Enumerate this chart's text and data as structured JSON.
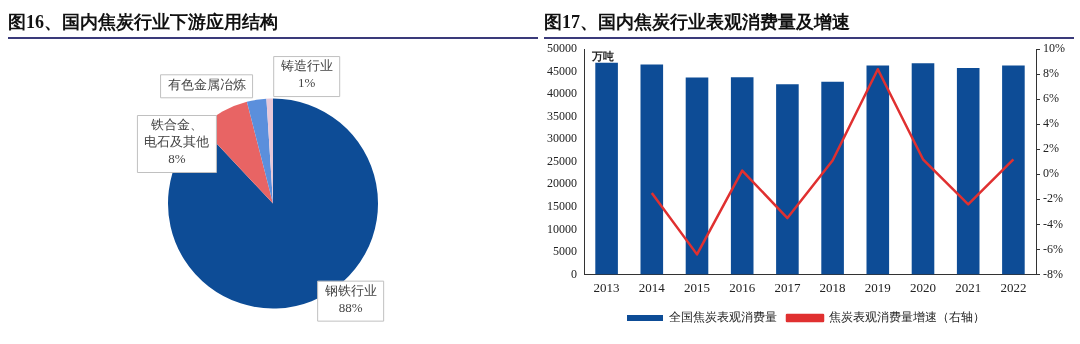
{
  "chart_data": [
    {
      "type": "pie",
      "title": "图16、国内焦炭行业下游应用结构",
      "categories": [
        "钢铁行业",
        "铁合金、电石及其他",
        "有色金属冶炼",
        "铸造行业"
      ],
      "values": [
        88,
        8,
        3,
        1
      ],
      "colors": [
        "#0d4c96",
        "#e86464",
        "#5b8fdc",
        "#e8c8d8"
      ],
      "value_labels": [
        "88%",
        "8%",
        null,
        "1%"
      ],
      "legend": false
    },
    {
      "type": "bar",
      "title": "图17、国内焦炭行业表观消费量及增速",
      "ylabel": "万吨",
      "categories": [
        "2013",
        "2014",
        "2015",
        "2016",
        "2017",
        "2018",
        "2019",
        "2020",
        "2021",
        "2022"
      ],
      "series": [
        {
          "name": "全国焦炭表观消费量",
          "type": "bar",
          "color": "#0d4c96",
          "values": [
            47000,
            46600,
            43700,
            43800,
            42200,
            42800,
            46400,
            46900,
            45800,
            46400
          ]
        },
        {
          "name": "焦炭表观消费量增速（右轴）",
          "type": "line",
          "axis": "y2",
          "color": "#e03030",
          "values": [
            null,
            -1.5,
            -6.4,
            0.3,
            -3.5,
            1.1,
            8.4,
            1.2,
            -2.4,
            1.2
          ]
        }
      ],
      "ylim": [
        0,
        50000
      ],
      "yticks": [
        0,
        5000,
        10000,
        15000,
        20000,
        25000,
        30000,
        35000,
        40000,
        45000,
        50000
      ],
      "y2lim": [
        -8,
        10
      ],
      "y2ticks": [
        {
          "value": -8,
          "label": "-8%"
        },
        {
          "value": -6,
          "label": "-6%"
        },
        {
          "value": -4,
          "label": "-4%"
        },
        {
          "value": -2,
          "label": "-2%"
        },
        {
          "value": 0,
          "label": "0%"
        },
        {
          "value": 2,
          "label": "2%"
        },
        {
          "value": 4,
          "label": "4%"
        },
        {
          "value": 6,
          "label": "6%"
        },
        {
          "value": 8,
          "label": "8%"
        },
        {
          "value": 10,
          "label": "10%"
        }
      ],
      "grid": false,
      "legend": "bottom",
      "marker": "none",
      "line_style": "solid"
    }
  ]
}
